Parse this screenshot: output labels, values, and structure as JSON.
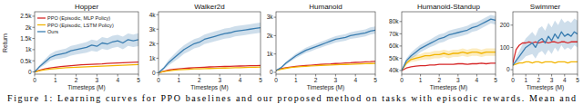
{
  "chart_data": [
    {
      "type": "line",
      "title": "Hopper",
      "x_label": "Timesteps (M)",
      "y_label": "Return",
      "legend": "upper left",
      "x": [
        0,
        0.25,
        0.5,
        0.75,
        1,
        1.25,
        1.5,
        1.75,
        2,
        2.25,
        2.5,
        2.75,
        3,
        3.25,
        3.5,
        3.75,
        4,
        4.25,
        4.5,
        4.75,
        5
      ],
      "xlim": [
        0,
        5
      ],
      "xticks": [
        0,
        1,
        2,
        3,
        4,
        5
      ],
      "ylim": [
        -100,
        2700
      ],
      "yticks": [
        0,
        {
          "value": 500,
          "label": "0.5k"
        },
        {
          "value": 1000,
          "label": "1k"
        },
        {
          "value": 1500,
          "label": "1.5k"
        },
        {
          "value": 2000,
          "label": "2k"
        },
        {
          "value": 2500,
          "label": "2.5k"
        }
      ],
      "series": [
        {
          "name": "PPO (Episodic, MLP Policy)",
          "color": "#d62728",
          "values": [
            0,
            80,
            140,
            180,
            210,
            240,
            260,
            280,
            300,
            320,
            330,
            340,
            350,
            360,
            380,
            390,
            400,
            410,
            420,
            430,
            440
          ]
        },
        {
          "name": "PPO (Episodic, LSTM Policy)",
          "color": "#f2b400",
          "values": [
            0,
            60,
            100,
            130,
            150,
            170,
            190,
            200,
            210,
            220,
            230,
            240,
            250,
            260,
            270,
            280,
            290,
            300,
            310,
            320,
            330
          ]
        },
        {
          "name": "Ours",
          "color": "#3a7db0",
          "values": [
            0,
            250,
            450,
            650,
            750,
            800,
            850,
            950,
            1000,
            1050,
            1100,
            1200,
            1150,
            1300,
            1250,
            1350,
            1400,
            1300,
            1450,
            1400,
            1450
          ],
          "error": [
            0,
            80,
            120,
            150,
            180,
            200,
            200,
            220,
            220,
            230,
            240,
            250,
            250,
            260,
            260,
            270,
            270,
            280,
            280,
            280,
            290
          ]
        }
      ]
    },
    {
      "type": "line",
      "title": "Walker2d",
      "x_label": "Timesteps (M)",
      "x": [
        0,
        0.25,
        0.5,
        0.75,
        1,
        1.25,
        1.5,
        1.75,
        2,
        2.25,
        2.5,
        2.75,
        3,
        3.25,
        3.5,
        3.75,
        4,
        4.25,
        4.5,
        4.75,
        5
      ],
      "xlim": [
        0,
        5
      ],
      "xticks": [
        0,
        1,
        2,
        3,
        4,
        5
      ],
      "ylim": [
        -100,
        4200
      ],
      "yticks": [
        0,
        {
          "value": 1000,
          "label": "1k"
        },
        {
          "value": 2000,
          "label": "2k"
        },
        {
          "value": 3000,
          "label": "3k"
        },
        {
          "value": 4000,
          "label": "4k"
        }
      ],
      "series": [
        {
          "color": "#d62728",
          "values": [
            0,
            100,
            180,
            230,
            270,
            300,
            320,
            340,
            360,
            380,
            400,
            410,
            420,
            430,
            440,
            450,
            460,
            470,
            480,
            490,
            500
          ]
        },
        {
          "color": "#f2b400",
          "values": [
            0,
            80,
            130,
            170,
            200,
            220,
            240,
            260,
            270,
            280,
            290,
            300,
            310,
            320,
            330,
            340,
            350,
            360,
            370,
            380,
            390
          ]
        },
        {
          "color": "#3a7db0",
          "values": [
            0,
            300,
            700,
            1000,
            1300,
            1600,
            1800,
            2000,
            2100,
            2300,
            2400,
            2500,
            2600,
            2700,
            2750,
            2850,
            2900,
            2950,
            3000,
            3050,
            3100
          ],
          "error": [
            0,
            100,
            200,
            250,
            300,
            300,
            320,
            320,
            330,
            330,
            340,
            340,
            340,
            350,
            350,
            350,
            350,
            350,
            350,
            350,
            350
          ]
        }
      ]
    },
    {
      "type": "line",
      "title": "Humanoid",
      "x_label": "Timesteps (M)",
      "x": [
        0,
        0.25,
        0.5,
        0.75,
        1,
        1.25,
        1.5,
        1.75,
        2,
        2.25,
        2.5,
        2.75,
        3,
        3.25,
        3.5,
        3.75,
        4,
        4.25,
        4.5,
        4.75,
        5
      ],
      "xlim": [
        0,
        5
      ],
      "xticks": [
        0,
        1,
        2,
        3,
        4,
        5
      ],
      "ylim": [
        -100,
        3300
      ],
      "yticks": [
        0,
        {
          "value": 1000,
          "label": "1k"
        },
        {
          "value": 2000,
          "label": "2k"
        },
        {
          "value": 3000,
          "label": "3k"
        }
      ],
      "series": [
        {
          "color": "#d62728",
          "values": [
            100,
            200,
            250,
            290,
            320,
            350,
            370,
            390,
            410,
            430,
            450,
            460,
            480,
            490,
            510,
            520,
            540,
            550,
            570,
            580,
            600
          ]
        },
        {
          "color": "#f2b400",
          "values": [
            100,
            170,
            220,
            260,
            290,
            310,
            330,
            350,
            360,
            380,
            390,
            400,
            410,
            420,
            430,
            440,
            450,
            460,
            470,
            480,
            490
          ]
        },
        {
          "color": "#3a7db0",
          "values": [
            100,
            250,
            500,
            700,
            900,
            1050,
            1200,
            1300,
            1400,
            1500,
            1600,
            1700,
            1800,
            1850,
            1900,
            2000,
            2050,
            2100,
            2150,
            2250,
            2300
          ],
          "error": [
            0,
            50,
            80,
            100,
            120,
            130,
            140,
            150,
            150,
            160,
            160,
            170,
            170,
            180,
            180,
            180,
            190,
            190,
            190,
            200,
            200
          ]
        }
      ]
    },
    {
      "type": "line",
      "title": "Humanoid-Standup",
      "x_label": "Timesteps (M)",
      "x": [
        0,
        0.25,
        0.5,
        0.75,
        1,
        1.25,
        1.5,
        1.75,
        2,
        2.25,
        2.5,
        2.75,
        3,
        3.25,
        3.5,
        3.75,
        4,
        4.25,
        4.5,
        4.75,
        5
      ],
      "xlim": [
        0,
        5
      ],
      "xticks": [
        0,
        1,
        2,
        3,
        4,
        5
      ],
      "ylim": [
        37000,
        88000
      ],
      "yticks": [
        {
          "value": 40000,
          "label": "40k"
        },
        {
          "value": 50000,
          "label": "50k"
        },
        {
          "value": 60000,
          "label": "60k"
        },
        {
          "value": 70000,
          "label": "70k"
        },
        {
          "value": 80000,
          "label": "80k"
        }
      ],
      "series": [
        {
          "color": "#d62728",
          "values": [
            40000,
            42000,
            43000,
            43500,
            44000,
            44000,
            44500,
            44500,
            45000,
            45000,
            45000,
            45000,
            45500,
            45500,
            45000,
            45500,
            45500,
            46000,
            45500,
            46000,
            46000
          ]
        },
        {
          "color": "#f2b400",
          "values": [
            40000,
            46000,
            49000,
            50000,
            51000,
            52000,
            52000,
            53000,
            53000,
            54000,
            53000,
            54000,
            54000,
            55000,
            54000,
            55000,
            55000,
            54000,
            55000,
            55000,
            55000
          ],
          "error": [
            0,
            1500,
            2000,
            2500,
            2500,
            3000,
            3000,
            3000,
            3000,
            3000,
            3000,
            3000,
            3000,
            3000,
            3000,
            3000,
            3000,
            3000,
            3000,
            3000,
            3000
          ]
        },
        {
          "color": "#3a7db0",
          "values": [
            40000,
            48000,
            52000,
            55000,
            58000,
            60000,
            62000,
            64000,
            66000,
            67000,
            69000,
            70000,
            71000,
            72000,
            73000,
            75000,
            76000,
            78000,
            80000,
            82000,
            81000
          ],
          "error": [
            0,
            2000,
            2500,
            3000,
            3000,
            3000,
            3000,
            3500,
            3500,
            3500,
            3500,
            3500,
            3500,
            3500,
            3500,
            3500,
            3500,
            3500,
            3500,
            3500,
            3500
          ]
        }
      ]
    },
    {
      "type": "line",
      "title": "Swimmer",
      "x_label": "Timesteps (M)",
      "x": [
        0,
        0.25,
        0.5,
        0.75,
        1,
        1.25,
        1.5,
        1.75,
        2,
        2.25,
        2.5,
        2.75,
        3,
        3.25,
        3.5,
        3.75,
        4,
        4.25,
        4.5,
        4.75,
        5
      ],
      "xlim": [
        0,
        5
      ],
      "xticks": [
        0,
        1,
        2,
        3,
        4,
        5
      ],
      "ylim": [
        -20,
        260
      ],
      "yticks": [
        0,
        100,
        200
      ],
      "series": [
        {
          "color": "#d62728",
          "values": [
            30,
            90,
            110,
            120,
            120,
            125,
            120,
            125,
            120,
            125,
            125,
            120,
            125,
            125,
            120,
            125,
            125,
            120,
            125,
            125,
            125
          ]
        },
        {
          "color": "#f2b400",
          "values": [
            20,
            25,
            30,
            30,
            35,
            35,
            30,
            35,
            35,
            30,
            35,
            35,
            35,
            30,
            35,
            35,
            35,
            30,
            35,
            35,
            35
          ]
        },
        {
          "color": "#3a7db0",
          "values": [
            20,
            40,
            60,
            80,
            100,
            110,
            120,
            100,
            130,
            140,
            120,
            150,
            130,
            160,
            140,
            170,
            150,
            160,
            150,
            170,
            160
          ],
          "error": [
            0,
            15,
            25,
            35,
            40,
            45,
            50,
            50,
            55,
            55,
            55,
            60,
            60,
            60,
            60,
            60,
            60,
            60,
            60,
            60,
            60
          ]
        }
      ]
    }
  ],
  "caption": "Figure 1: Learning curves for PPO baselines and our proposed method on tasks with episodic rewards. Mean and"
}
